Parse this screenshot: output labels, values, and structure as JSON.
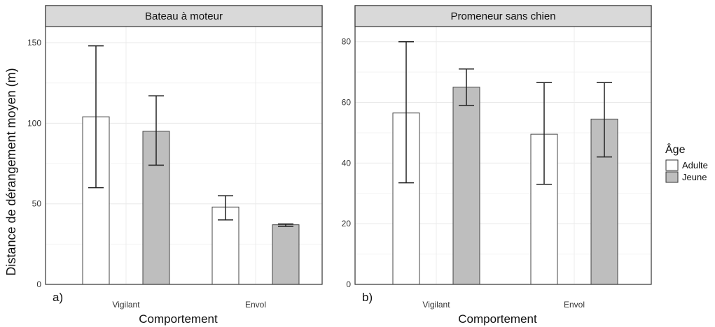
{
  "chart_data": [
    {
      "type": "bar",
      "title": "Bateau à moteur",
      "tag": "a)",
      "categories": [
        "Vigilant",
        "Envol"
      ],
      "xlabel": "Comportement",
      "ylabel": "Distance de dérangement moyen (m)",
      "ylim": [
        0,
        160
      ],
      "yticks": [
        0,
        50,
        100,
        150
      ],
      "series": [
        {
          "name": "Adulte",
          "values": [
            104,
            48
          ],
          "err_low": [
            60,
            40
          ],
          "err_high": [
            148,
            55
          ]
        },
        {
          "name": "Jeune",
          "values": [
            95,
            37
          ],
          "err_low": [
            74,
            36
          ],
          "err_high": [
            117,
            37.5
          ]
        }
      ]
    },
    {
      "type": "bar",
      "title": "Promeneur sans chien",
      "tag": "b)",
      "categories": [
        "Vigilant",
        "Envol"
      ],
      "xlabel": "Comportement",
      "ylabel": "",
      "ylim": [
        0,
        85
      ],
      "yticks": [
        0,
        20,
        40,
        60,
        80
      ],
      "series": [
        {
          "name": "Adulte",
          "values": [
            56.5,
            49.5
          ],
          "err_low": [
            33.5,
            33
          ],
          "err_high": [
            80,
            66.5
          ]
        },
        {
          "name": "Jeune",
          "values": [
            65,
            54.5
          ],
          "err_low": [
            59,
            42
          ],
          "err_high": [
            71,
            66.5
          ]
        }
      ]
    }
  ],
  "legend": {
    "title": "Âge",
    "position": "right",
    "items": [
      {
        "label": "Adulte",
        "color": "#ffffff"
      },
      {
        "label": "Jeune",
        "color": "#bebebe"
      }
    ]
  },
  "colors": {
    "Adulte": "#ffffff",
    "Jeune": "#bebebe",
    "strip": "#d9d9d9",
    "border": "#333333"
  }
}
